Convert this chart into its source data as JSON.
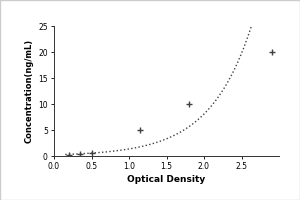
{
  "x_data": [
    0.2,
    0.35,
    0.5,
    1.15,
    1.8,
    2.9
  ],
  "y_data": [
    0.156,
    0.312,
    0.625,
    5.0,
    10.0,
    20.0
  ],
  "xlabel": "Optical Density",
  "ylabel": "Concentration(ng/mL)",
  "xlim": [
    0.0,
    3.0
  ],
  "ylim": [
    0,
    25
  ],
  "xticks": [
    0.0,
    0.5,
    1.0,
    1.5,
    2.0,
    2.5
  ],
  "yticks": [
    0,
    5,
    10,
    15,
    20,
    25
  ],
  "line_color": "#404040",
  "marker_color": "#404040",
  "bg_color": "#ffffff",
  "fig_bg_color": "#ffffff",
  "outer_border_color": "#cccccc",
  "xlabel_fontsize": 6.5,
  "ylabel_fontsize": 6.0,
  "tick_fontsize": 5.5
}
